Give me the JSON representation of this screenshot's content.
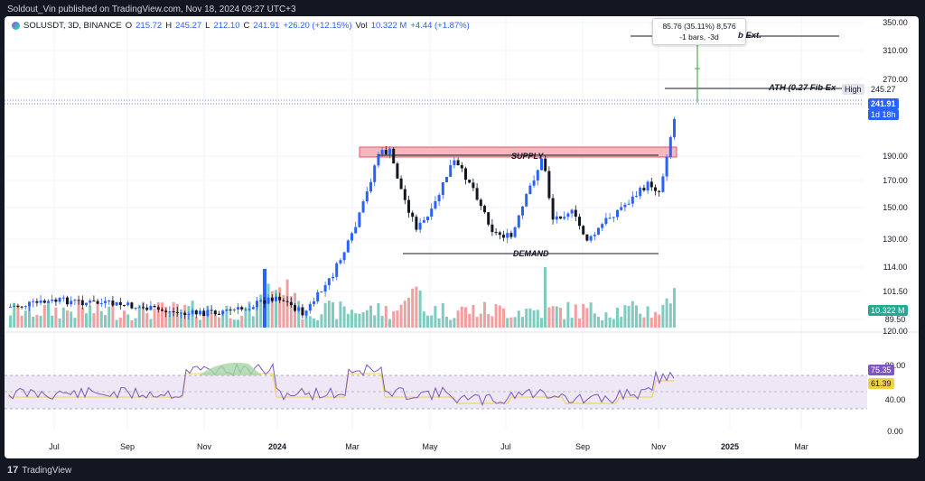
{
  "header": {
    "publisher": "Soldout_Vin published on TradingView.com, Nov 18, 2024 09:27 UTC+3"
  },
  "footer": {
    "brand": "TradingView",
    "logo_glyph": "17"
  },
  "symbol": {
    "name": "SOLUSDT, 3D, BINANCE",
    "o_label": "O",
    "o": "215.72",
    "h_label": "H",
    "h": "245.27",
    "l_label": "L",
    "l": "212.10",
    "c_label": "C",
    "c": "241.91",
    "change": "+26.20 (+12.15%)",
    "vol_label": "Vol",
    "vol": "10.322 M",
    "vol_change": "+4.44 (+1.87%)"
  },
  "annotations": {
    "supply": "SUPPLY",
    "demand": "DEMAND",
    "ath": "ATH (0.27 Fib Ex",
    "fib_ext": "b Ext.",
    "high_tag": "High",
    "measure_line1": "85.76 (35.11%) 8,576",
    "measure_line2": "-1 bars, -3d"
  },
  "price_axis": {
    "ticks": [
      "350.00",
      "310.00",
      "270.00",
      "190.00",
      "170.00",
      "150.00",
      "130.00",
      "114.00",
      "101.50",
      "89.50"
    ],
    "high_value": "245.27",
    "last_price": "241.91",
    "countdown": "1d 18h",
    "volume_value": "10.322 M"
  },
  "rsi_axis": {
    "ticks": [
      "120.00",
      "80.00",
      "40.00",
      "0.00"
    ],
    "rsi_value": "75.35",
    "ma_value": "61.39"
  },
  "time_axis": {
    "labels": [
      "Jul",
      "Sep",
      "Nov",
      "2024",
      "Mar",
      "May",
      "Jul",
      "Sep",
      "Nov",
      "2025",
      "Mar"
    ]
  },
  "colors": {
    "up": "#2962ff",
    "down": "#131722",
    "vol_up": "#7ecbc0",
    "vol_down": "#f0a0a0",
    "supply_fill": "#f4b8bf",
    "supply_border": "#e05566",
    "rsi": "#7e57c2",
    "rsi_ma": "#f0d044",
    "rsi_band": "#ede7f6",
    "measure": "#4caf50"
  },
  "icons": {
    "symbol_logo": "solana-logo-icon",
    "brand_logo": "tradingview-logo-icon"
  }
}
